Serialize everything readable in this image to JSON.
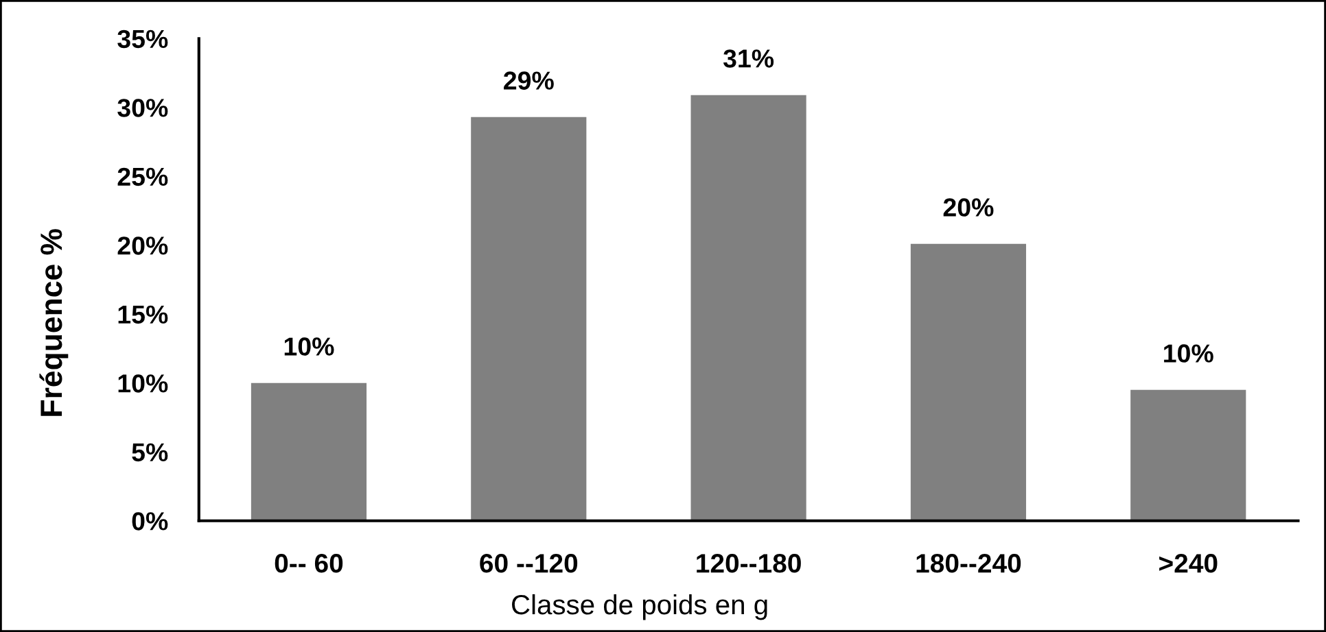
{
  "chart_data": {
    "type": "bar",
    "categories": [
      "0-- 60",
      "60 --120",
      "120--180",
      "180--240",
      ">240"
    ],
    "values": [
      10.0,
      29.3,
      30.9,
      20.1,
      9.5
    ],
    "value_labels": [
      "10%",
      "29%",
      "31%",
      "20%",
      "10%"
    ],
    "color": "#808080",
    "ylim": [
      0,
      35
    ],
    "yticks": [
      {
        "value": 0,
        "label": "0%"
      },
      {
        "value": 5,
        "label": "5%"
      },
      {
        "value": 10,
        "label": "10%"
      },
      {
        "value": 15,
        "label": "15%"
      },
      {
        "value": 20,
        "label": "20%"
      },
      {
        "value": 25,
        "label": "25%"
      },
      {
        "value": 30,
        "label": "30%"
      },
      {
        "value": 35,
        "label": "35%"
      }
    ],
    "xlabel": "Classe de poids en g",
    "ylabel": "Fréquence %"
  }
}
